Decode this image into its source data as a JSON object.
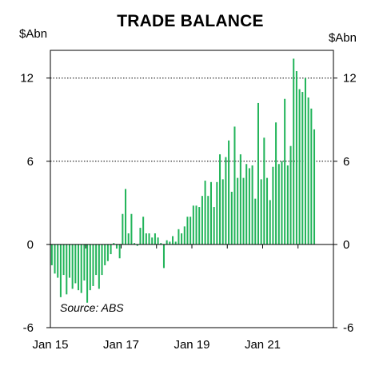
{
  "chart_data": {
    "type": "bar",
    "title": "TRADE BALANCE",
    "unit_left": "$Abn",
    "unit_right": "$Abn",
    "source": "Source: ABS",
    "ylim": [
      -6,
      14
    ],
    "yticks": [
      -6,
      0,
      6,
      12
    ],
    "grid": "dotted horizontal at 6 and 12",
    "bar_color": "#22b45a",
    "x_range": [
      "2015-01",
      "2022-12"
    ],
    "xtick_labels": [
      {
        "date": "2015-01",
        "label": "Jan 15"
      },
      {
        "date": "2017-01",
        "label": "Jan 17"
      },
      {
        "date": "2019-01",
        "label": "Jan 19"
      },
      {
        "date": "2021-01",
        "label": "Jan 21"
      }
    ],
    "series": [
      {
        "start": "2015-01",
        "values": [
          -1.5,
          -2.1,
          -2.4,
          -3.8,
          -2.2,
          -3.6,
          -2.4,
          -3.2,
          -2.8,
          -3.3,
          -3.5,
          -2.6,
          -4.2,
          -3.3,
          -3.0,
          -2.2,
          -3.2,
          -2.2,
          -1.5,
          -1.2,
          -0.7,
          0.1,
          -0.3,
          -1.0,
          2.2,
          4.0,
          0.8,
          2.2,
          0.1,
          -0.1,
          1.2,
          2.0,
          0.8,
          0.8,
          0.5,
          0.8,
          0.5,
          0.1,
          -1.7,
          0.3,
          0.2,
          0.6,
          0.2,
          1.1,
          0.8,
          1.3,
          2.0,
          2.0,
          2.8,
          2.8,
          2.7,
          3.5,
          4.6,
          3.5,
          4.5,
          2.7,
          4.5,
          6.5,
          4.7,
          6.3,
          7.5,
          3.8,
          8.5,
          4.8,
          6.5,
          4.8,
          5.8,
          5.5,
          5.7,
          3.3,
          10.2,
          4.7,
          7.7,
          4.8,
          3.2,
          5.6,
          8.8,
          5.8,
          6.0,
          10.5,
          5.7,
          7.1,
          13.4,
          12.5,
          11.2,
          11.0,
          12.0,
          10.6,
          9.8,
          8.3
        ]
      }
    ]
  }
}
